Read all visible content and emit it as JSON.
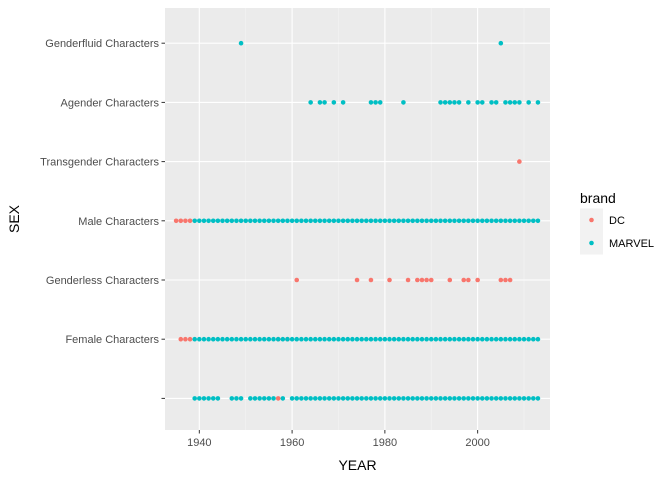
{
  "chart_data": {
    "type": "scatter",
    "xlabel": "YEAR",
    "ylabel": "SEX",
    "xlim": [
      1932.6,
      2015.6
    ],
    "x_ticks": [
      1940,
      1960,
      1980,
      2000
    ],
    "categories": [
      "",
      "Female Characters",
      "Genderless Characters",
      "Male Characters",
      "Transgender Characters",
      "Agender Characters",
      "Genderfluid Characters"
    ],
    "grid": true,
    "legend": {
      "title": "brand",
      "placement": "right"
    },
    "series": [
      {
        "name": "DC",
        "color": "#F8766D",
        "points": [
          {
            "category": "Male Characters",
            "x": [
              1935,
              1936,
              1937,
              1938
            ]
          },
          {
            "category": "Female Characters",
            "x": [
              1936,
              1937,
              1938,
              1957,
              1959
            ]
          },
          {
            "category": "",
            "x": [
              1957
            ]
          },
          {
            "category": "Genderless Characters",
            "x": [
              1961,
              1974,
              1977,
              1981,
              1985,
              1987,
              1988,
              1989,
              1990,
              1994,
              1997,
              1998,
              2000,
              2005,
              2006,
              2007
            ]
          },
          {
            "category": "Transgender Characters",
            "x": [
              2009
            ]
          }
        ]
      },
      {
        "name": "MARVEL",
        "color": "#00BFC4",
        "points": [
          {
            "category": "Genderfluid Characters",
            "x": [
              1949,
              2005
            ]
          },
          {
            "category": "Agender Characters",
            "x": [
              1964,
              1966,
              1967,
              1969,
              1971,
              1977,
              1978,
              1979,
              1984,
              1992,
              1993,
              1994,
              1995,
              1996,
              1998,
              2000,
              2001,
              2003,
              2004,
              2006,
              2007,
              2008,
              2009,
              2011,
              2013
            ]
          },
          {
            "category": "Male Characters",
            "range": [
              1939,
              2013
            ]
          },
          {
            "category": "Female Characters",
            "range": [
              1939,
              2013
            ]
          },
          {
            "category": "",
            "x": [
              1939,
              1940,
              1941,
              1942,
              1943,
              1944,
              1947,
              1948,
              1949,
              1951,
              1952,
              1953,
              1954,
              1955,
              1956,
              1958,
              1960,
              1961,
              1962,
              1963,
              1964,
              1965,
              1966,
              1967,
              1968,
              1969,
              1970,
              1971,
              1972,
              1973,
              1974,
              1975,
              1976,
              1977,
              1978,
              1979,
              1980,
              1981,
              1982,
              1983,
              1984,
              1985,
              1986,
              1987,
              1988,
              1989,
              1990,
              1991,
              1992,
              1993,
              1994,
              1995,
              1996,
              1997,
              1998,
              1999,
              2000,
              2001,
              2002,
              2003,
              2004,
              2005,
              2006,
              2007,
              2008,
              2009,
              2010,
              2011,
              2012,
              2013
            ]
          }
        ]
      }
    ]
  }
}
